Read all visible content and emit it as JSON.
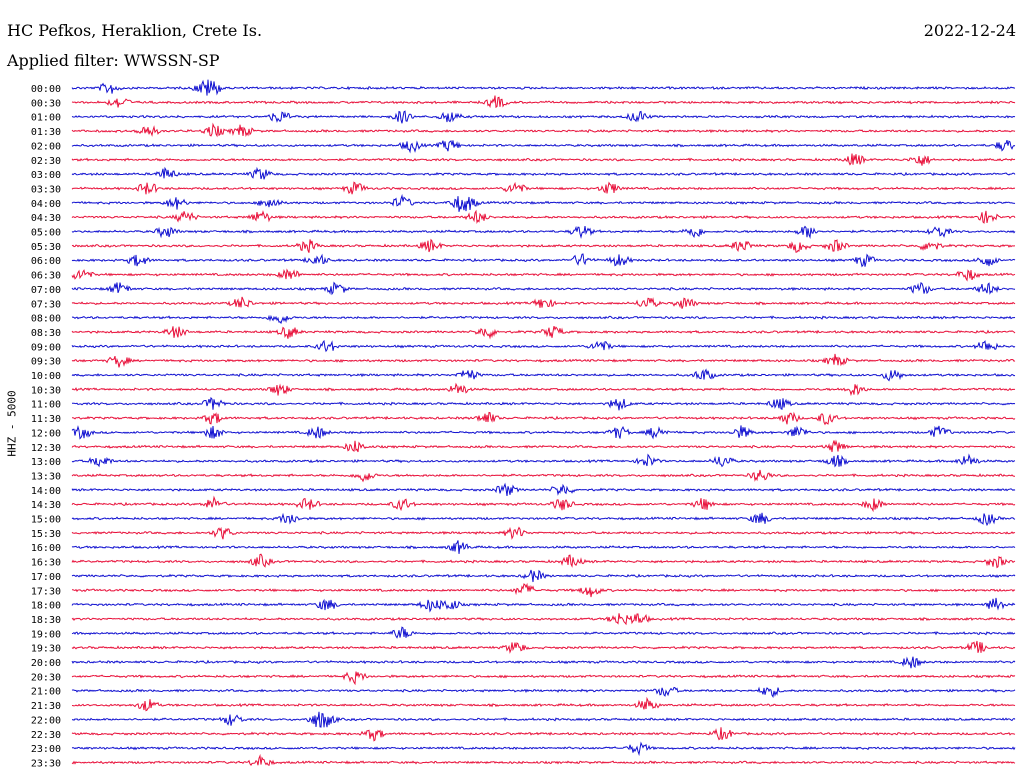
{
  "header": {
    "station": "HC Pefkos, Heraklion, Crete Is.",
    "date": "2022-12-24",
    "filter": "Applied filter: WWSSN-SP"
  },
  "colors": {
    "odd_trace": "#1010d0",
    "even_trace": "#e8103a"
  },
  "chart_data": {
    "type": "line",
    "title": "HC Pefkos, Heraklion, Crete Is.",
    "subtitle": "Applied filter: WWSSN-SP",
    "ylabel": "HHZ - 5000",
    "xlabel": "",
    "y_tick_labels": [
      "00:00",
      "00:30",
      "01:00",
      "01:30",
      "02:00",
      "02:30",
      "03:00",
      "03:30",
      "04:00",
      "04:30",
      "05:00",
      "05:30",
      "06:00",
      "06:30",
      "07:00",
      "07:30",
      "08:00",
      "08:30",
      "09:00",
      "09:30",
      "10:00",
      "10:30",
      "11:00",
      "11:30",
      "12:00",
      "12:30",
      "13:00",
      "13:30",
      "14:00",
      "14:30",
      "15:00",
      "15:30",
      "16:00",
      "16:30",
      "17:00",
      "17:30",
      "18:00",
      "18:30",
      "19:00",
      "19:30",
      "20:00",
      "20:30",
      "21:00",
      "21:30",
      "22:00",
      "22:30",
      "23:00",
      "23:30"
    ],
    "trace_minutes": 30,
    "grid": false,
    "series": [
      {
        "values": [
          0.14,
          0.04,
          0.15
        ]
      },
      {
        "values": [
          0.05,
          0.45
        ]
      },
      {
        "values": [
          0.4,
          0.35,
          0.22,
          0.6
        ]
      },
      {
        "values": [
          0.08,
          0.15,
          0.18
        ]
      },
      {
        "values": [
          0.4,
          0.36,
          0.99
        ]
      },
      {
        "values": [
          0.83,
          0.9
        ]
      },
      {
        "values": [
          0.1,
          0.2
        ]
      },
      {
        "values": [
          0.08,
          0.47,
          0.57,
          0.3
        ]
      },
      {
        "values": [
          0.11,
          0.21,
          0.35,
          0.41,
          0.42
        ]
      },
      {
        "values": [
          0.12,
          0.2,
          0.43,
          0.97
        ]
      },
      {
        "values": [
          0.1,
          0.54,
          0.66,
          0.78,
          0.92
        ]
      },
      {
        "values": [
          0.25,
          0.38,
          0.71,
          0.77,
          0.81,
          0.91
        ]
      },
      {
        "values": [
          0.07,
          0.26,
          0.54,
          0.58,
          0.84,
          0.97
        ]
      },
      {
        "values": [
          0.01,
          0.23,
          0.95
        ]
      },
      {
        "values": [
          0.05,
          0.28,
          0.9,
          0.97
        ]
      },
      {
        "values": [
          0.18,
          0.5,
          0.61,
          0.65
        ]
      },
      {
        "values": [
          0.22
        ]
      },
      {
        "values": [
          0.11,
          0.23,
          0.44,
          0.51
        ]
      },
      {
        "values": [
          0.56,
          0.97,
          0.27
        ]
      },
      {
        "values": [
          0.05,
          0.81
        ]
      },
      {
        "values": [
          0.42,
          0.67,
          0.87
        ]
      },
      {
        "values": [
          0.22,
          0.41,
          0.83
        ]
      },
      {
        "values": [
          0.15,
          0.58,
          0.75
        ]
      },
      {
        "values": [
          0.15,
          0.44,
          0.76,
          0.8
        ]
      },
      {
        "values": [
          0.01,
          0.15,
          0.26,
          0.58,
          0.62,
          0.71,
          0.77,
          0.92
        ]
      },
      {
        "values": [
          0.3,
          0.81
        ]
      },
      {
        "values": [
          0.03,
          0.61,
          0.69,
          0.81,
          0.95
        ]
      },
      {
        "values": [
          0.31,
          0.73
        ]
      },
      {
        "values": [
          0.46,
          0.52
        ]
      },
      {
        "values": [
          0.15,
          0.25,
          0.35,
          0.52,
          0.67,
          0.85
        ]
      },
      {
        "values": [
          0.23,
          0.73,
          0.97
        ]
      },
      {
        "values": [
          0.16,
          0.47
        ]
      },
      {
        "values": [
          0.41
        ]
      },
      {
        "values": [
          0.2,
          0.53,
          0.98
        ]
      },
      {
        "values": [
          0.49
        ]
      },
      {
        "values": [
          0.48,
          0.55
        ]
      },
      {
        "values": [
          0.27,
          0.38,
          0.4,
          0.98
        ]
      },
      {
        "values": [
          0.58,
          0.6
        ]
      },
      {
        "values": [
          0.35
        ]
      },
      {
        "values": [
          0.47,
          0.96
        ]
      },
      {
        "values": [
          0.89
        ]
      },
      {
        "values": [
          0.3
        ]
      },
      {
        "values": [
          0.63,
          0.74
        ]
      },
      {
        "values": [
          0.08,
          0.61
        ]
      },
      {
        "values": [
          0.17,
          0.26,
          0.27
        ]
      },
      {
        "values": [
          0.32,
          0.69
        ]
      },
      {
        "values": [
          0.6
        ]
      },
      {
        "values": [
          0.2
        ]
      }
    ]
  }
}
